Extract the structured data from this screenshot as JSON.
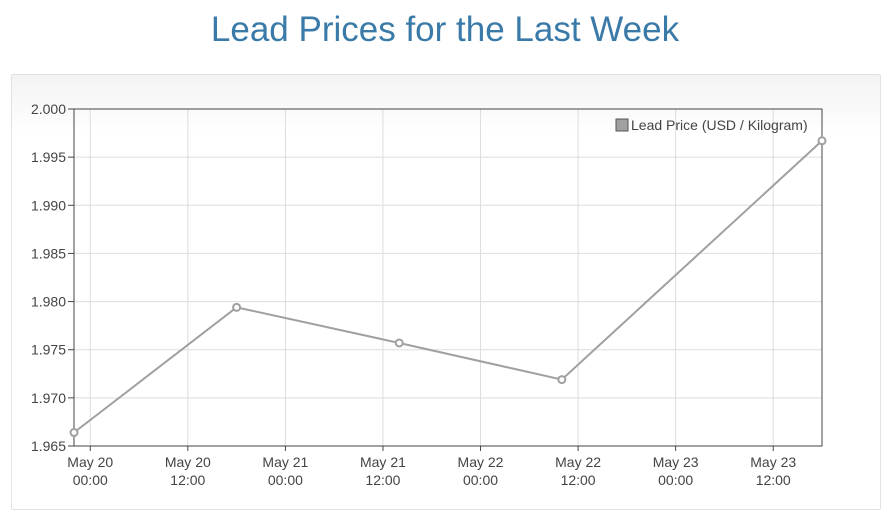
{
  "page_title": "Lead Prices for the Last Week",
  "colors": {
    "title": "#3a7aa8",
    "series_line": "#a0a0a0",
    "grid": "#dddddd",
    "axis": "#444444"
  },
  "chart_data": {
    "type": "line",
    "title": "Lead Prices for the Last Week",
    "xlabel": "",
    "ylabel": "",
    "ylim": [
      1.965,
      2.0
    ],
    "y_ticks": [
      "2.000",
      "1.995",
      "1.990",
      "1.985",
      "1.980",
      "1.975",
      "1.970",
      "1.965"
    ],
    "y_tick_values": [
      2.0,
      1.995,
      1.99,
      1.985,
      1.98,
      1.975,
      1.97,
      1.965
    ],
    "x_axis_range": [
      "May 19 22:00",
      "May 23 18:00"
    ],
    "x_ticks": [
      {
        "line1": "May 20",
        "line2": "00:00",
        "at": "May 20 00:00"
      },
      {
        "line1": "May 20",
        "line2": "12:00",
        "at": "May 20 12:00"
      },
      {
        "line1": "May 21",
        "line2": "00:00",
        "at": "May 21 00:00"
      },
      {
        "line1": "May 21",
        "line2": "12:00",
        "at": "May 21 12:00"
      },
      {
        "line1": "May 22",
        "line2": "00:00",
        "at": "May 22 00:00"
      },
      {
        "line1": "May 22",
        "line2": "12:00",
        "at": "May 22 12:00"
      },
      {
        "line1": "May 23",
        "line2": "00:00",
        "at": "May 23 00:00"
      },
      {
        "line1": "May 23",
        "line2": "12:00",
        "at": "May 23 12:00"
      }
    ],
    "grid": true,
    "legend_position": "top-right",
    "series": [
      {
        "name": "Lead Price (USD / Kilogram)",
        "points": [
          {
            "x": "May 19 22:00",
            "y": 1.9664
          },
          {
            "x": "May 20 18:00",
            "y": 1.9794
          },
          {
            "x": "May 21 14:00",
            "y": 1.9757
          },
          {
            "x": "May 22 10:00",
            "y": 1.9719
          },
          {
            "x": "May 23 18:00",
            "y": 1.9967
          }
        ]
      }
    ]
  }
}
